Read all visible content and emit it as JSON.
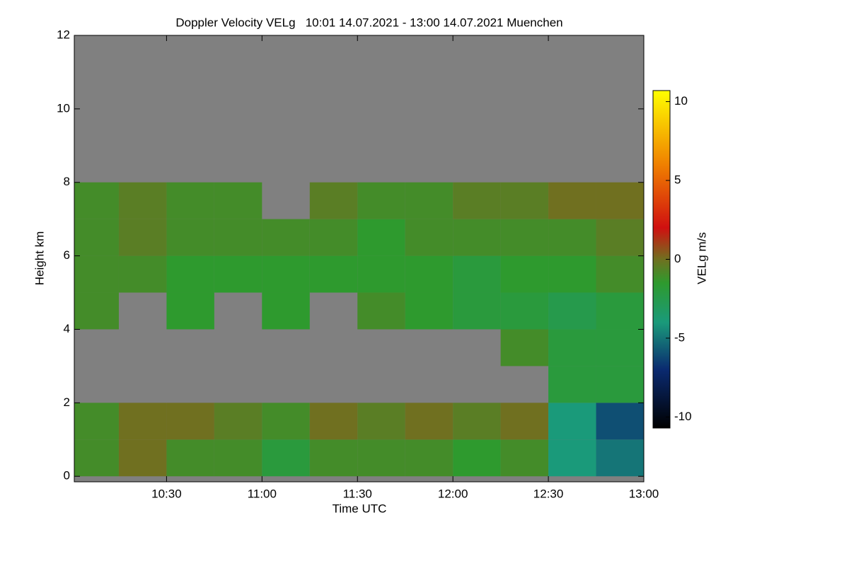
{
  "chart_data": {
    "type": "heatmap",
    "title": "Doppler Velocity VELg   10:01 14.07.2021 - 13:00 14.07.2021 Muenchen",
    "xlabel": "Time UTC",
    "ylabel": "Height km",
    "colorbar_label": "VELg m/s",
    "x": [
      10.125,
      10.375,
      10.625,
      10.875,
      11.125,
      11.375,
      11.625,
      11.875,
      12.125,
      12.375,
      12.625,
      12.875
    ],
    "y": [
      0.5,
      1.5,
      2.5,
      3.5,
      4.5,
      5.5,
      6.5,
      7.5,
      8.5,
      9.5,
      10.5,
      11.5
    ],
    "z": [
      [
        -1,
        0,
        -1,
        -1,
        -2,
        -1,
        -1,
        -1,
        -1.5,
        -1,
        -4,
        -5
      ],
      [
        -1,
        0,
        0,
        -0.5,
        -1,
        0,
        -0.5,
        0,
        -0.5,
        0,
        -4,
        -6
      ],
      [
        null,
        null,
        null,
        null,
        null,
        null,
        null,
        null,
        null,
        null,
        -2,
        -2
      ],
      [
        null,
        null,
        null,
        null,
        null,
        null,
        null,
        null,
        null,
        -1,
        -2,
        -2
      ],
      [
        -1,
        null,
        -1.5,
        null,
        -1.5,
        null,
        -1,
        -1.5,
        -2,
        -2,
        -2.5,
        -2
      ],
      [
        -1,
        -1,
        -1.5,
        -1.5,
        -1.5,
        -1.5,
        -1.5,
        -1.5,
        -2,
        -1.5,
        -1.5,
        -1
      ],
      [
        -1,
        -0.5,
        -1,
        -1,
        -1,
        -1,
        -1.5,
        -1,
        -1,
        -1,
        -1,
        -0.5
      ],
      [
        -1,
        -0.5,
        -1,
        -1,
        null,
        -0.5,
        -1,
        -1,
        -0.5,
        -0.5,
        0,
        0
      ],
      [
        null,
        null,
        null,
        null,
        null,
        null,
        null,
        null,
        null,
        null,
        null,
        null
      ],
      [
        null,
        null,
        null,
        null,
        null,
        null,
        null,
        null,
        null,
        null,
        null,
        null
      ],
      [
        null,
        null,
        null,
        null,
        null,
        null,
        null,
        null,
        null,
        null,
        null,
        null
      ],
      [
        null,
        null,
        null,
        null,
        null,
        null,
        null,
        null,
        null,
        null,
        null,
        null
      ]
    ],
    "xlim": [
      10.0167,
      13.0
    ],
    "xticks": [
      {
        "value": 10.5,
        "label": "10:30"
      },
      {
        "value": 11,
        "label": "11:00"
      },
      {
        "value": 11.5,
        "label": "11:30"
      },
      {
        "value": 12,
        "label": "12:00"
      },
      {
        "value": 12.5,
        "label": "12:30"
      },
      {
        "value": 13,
        "label": "13:00"
      }
    ],
    "ylim": [
      -0.15,
      12
    ],
    "yticks": [
      0,
      2,
      4,
      6,
      8,
      10,
      12
    ],
    "zlim": [
      -10.7,
      10.7
    ],
    "zticks": [
      -10,
      -5,
      0,
      5,
      10
    ],
    "missing_color": "#808080",
    "colorscale": [
      [
        -10.7,
        "#000000"
      ],
      [
        -7,
        "#0a2a70"
      ],
      [
        -4,
        "#1a9a7a"
      ],
      [
        -1.5,
        "#2e9a2e"
      ],
      [
        0,
        "#707020"
      ],
      [
        2,
        "#d01010"
      ],
      [
        6,
        "#f08000"
      ],
      [
        10.7,
        "#ffff00"
      ]
    ]
  }
}
